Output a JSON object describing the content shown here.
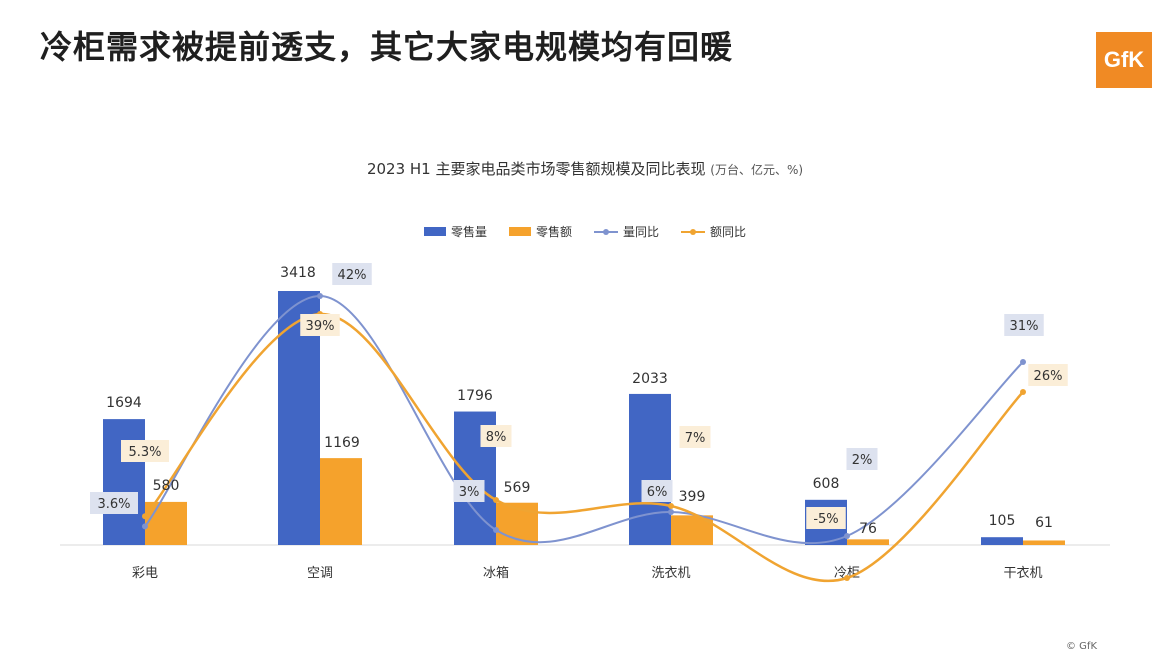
{
  "slide_title": "冷柜需求被提前透支，其它大家电规模均有回暖",
  "logo_text": "GfK",
  "copyright": "© GfK",
  "colors": {
    "volume_bar": "#4166c4",
    "sales_bar": "#f5a22c",
    "volume_yoy_line": "#7f93cf",
    "sales_yoy_line": "#f0a431",
    "volume_label_bg": "#dde2ef",
    "sales_label_bg": "#fbeed8"
  },
  "chart_data": {
    "type": "bar",
    "title": "2023 H1 主要家电品类市场零售额规模及同比表现",
    "title_unit": "(万台、亿元、%)",
    "categories": [
      "彩电",
      "空调",
      "冰箱",
      "洗衣机",
      "冷柜",
      "干衣机"
    ],
    "series": [
      {
        "name": "零售量",
        "kind": "bar",
        "values": [
          1694,
          3418,
          1796,
          2033,
          608,
          105
        ],
        "labels": [
          "1694",
          "3418",
          "1796",
          "2033",
          "608",
          "105"
        ]
      },
      {
        "name": "零售额",
        "kind": "bar",
        "values": [
          580,
          1169,
          569,
          399,
          76,
          61
        ],
        "labels": [
          "580",
          "1169",
          "569",
          "399",
          "76",
          "61"
        ]
      },
      {
        "name": "量同比",
        "kind": "line",
        "values": [
          3.6,
          42,
          3,
          6,
          2,
          31
        ],
        "labels": [
          "3.6%",
          "42%",
          "3%",
          "6%",
          "2%",
          "31%"
        ]
      },
      {
        "name": "额同比",
        "kind": "line",
        "values": [
          5.3,
          39,
          8,
          7,
          -5,
          26
        ],
        "labels": [
          "5.3%",
          "39%",
          "8%",
          "7%",
          "-5%",
          "26%"
        ]
      }
    ],
    "grid": false,
    "legend_position": "top-center"
  }
}
